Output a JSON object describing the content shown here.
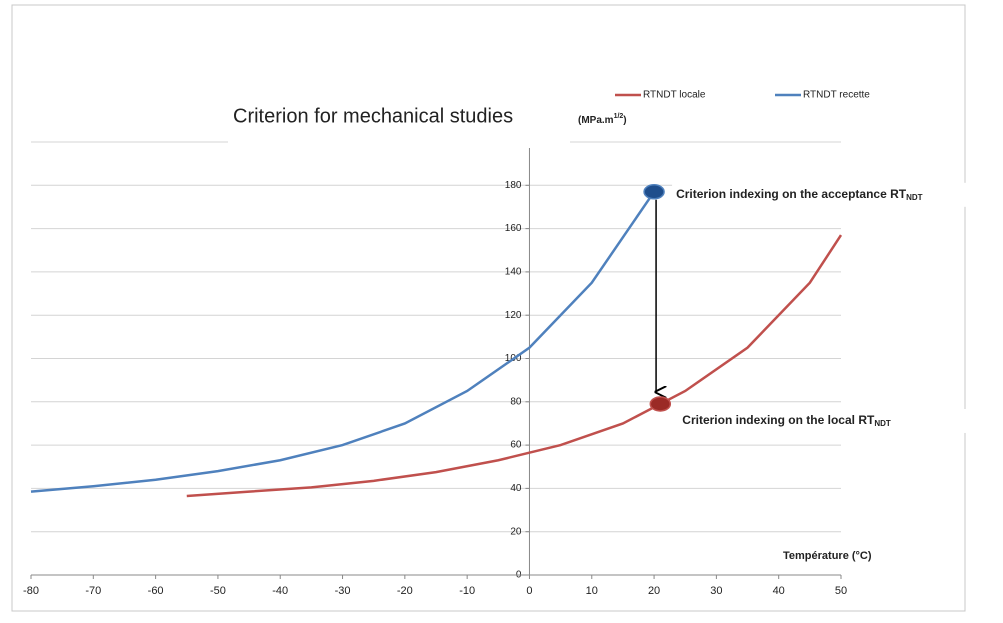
{
  "chart_data": {
    "type": "line",
    "title": "Criterion for mechanical studies",
    "y_unit": {
      "text": "(MPa.m",
      "superscript": "1/2",
      "suffix": ")"
    },
    "x_label": "Température (°C)",
    "xlim": [
      -80,
      50
    ],
    "xticks": [
      -80,
      -70,
      -60,
      -50,
      -40,
      -30,
      -20,
      -10,
      0,
      10,
      20,
      30,
      40,
      50
    ],
    "ylim": [
      0,
      200
    ],
    "yticks": [
      0,
      20,
      40,
      60,
      80,
      100,
      120,
      140,
      160,
      180,
      200
    ],
    "grid": true,
    "legend": "top",
    "series": [
      {
        "name": "RTNDT locale",
        "color": "#c0504d",
        "x": [
          -55,
          -45,
          -35,
          -25,
          -15,
          -5,
          5,
          15,
          25,
          35,
          45,
          50
        ],
        "values": [
          36.5,
          38.5,
          40.5,
          43.5,
          47.5,
          53,
          60,
          70,
          85,
          105,
          135,
          157
        ]
      },
      {
        "name": "RTNDT recette",
        "color": "#4f81bd",
        "x": [
          -80,
          -70,
          -60,
          -50,
          -40,
          -30,
          -20,
          -10,
          0,
          10,
          20
        ],
        "values": [
          38.5,
          41,
          44,
          48,
          53,
          60,
          70,
          85,
          105,
          135,
          177
        ]
      }
    ],
    "annotations": [
      {
        "text": "Criterion indexing on the acceptance RT",
        "subscript": "NDT",
        "x": 20,
        "y": 177,
        "color": "#4f81bd",
        "marker_color": "#1f4e8c"
      },
      {
        "text": "Criterion indexing on the local RT",
        "subscript": "NDT",
        "x": 21,
        "y": 79,
        "color": "#c0504d",
        "marker_color": "#9b2a26"
      }
    ]
  }
}
